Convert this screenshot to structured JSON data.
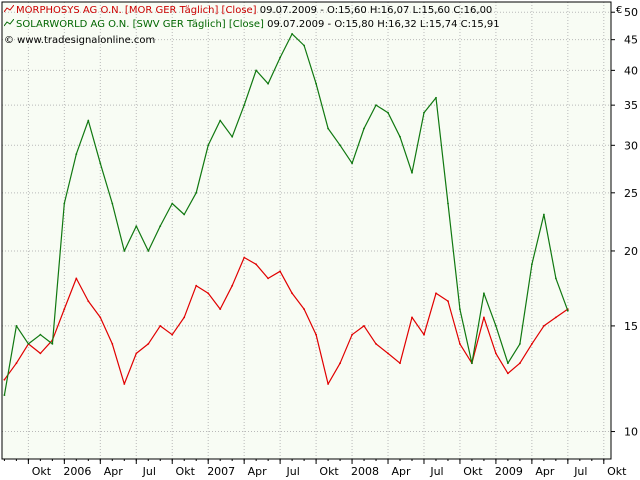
{
  "colors": {
    "series1": "#e10000",
    "series2": "#107810",
    "background": "#f8fcf4",
    "grid": "#b9b9b9",
    "axis": "#000000"
  },
  "legend": {
    "line1": {
      "icon": "line-chart-icon",
      "name": "MORPHOSYS AG O.N. [MOR GER  Täglich] [Close]",
      "quote": "09.07.2009 - O:15,60 H:16,07 L:15,60 C:16,00"
    },
    "line2": {
      "icon": "line-chart-icon",
      "name": "SOLARWORLD AG O.N. [SWV GER  Täglich] [Close]",
      "quote": "09.07.2009 - O:15,80 H:16,32 L:15,74 C:15,91"
    },
    "copyright": "© www.tradesignalonline.com"
  },
  "currency": "€",
  "chart_data": {
    "type": "line",
    "y_scale": "log",
    "ylim": [
      9,
      52
    ],
    "y_ticks": [
      "50",
      "45",
      "40",
      "35",
      "30",
      "25",
      "20",
      "15",
      "10"
    ],
    "x_tick_labels": [
      "Okt",
      "2006",
      "Apr",
      "Jul",
      "Okt",
      "2007",
      "Apr",
      "Jul",
      "Okt",
      "2008",
      "Apr",
      "Jul",
      "Okt",
      "2009",
      "Apr",
      "Jul",
      "Okt"
    ],
    "grid": true,
    "x": [
      "2005-08",
      "2005-09",
      "2005-10",
      "2005-11",
      "2005-12",
      "2006-01",
      "2006-02",
      "2006-03",
      "2006-04",
      "2006-05",
      "2006-06",
      "2006-07",
      "2006-08",
      "2006-09",
      "2006-10",
      "2006-11",
      "2006-12",
      "2007-01",
      "2007-02",
      "2007-03",
      "2007-04",
      "2007-05",
      "2007-06",
      "2007-07",
      "2007-08",
      "2007-09",
      "2007-10",
      "2007-11",
      "2007-12",
      "2008-01",
      "2008-02",
      "2008-03",
      "2008-04",
      "2008-05",
      "2008-06",
      "2008-07",
      "2008-08",
      "2008-09",
      "2008-10",
      "2008-11",
      "2008-12",
      "2009-01",
      "2009-02",
      "2009-03",
      "2009-04",
      "2009-05",
      "2009-06",
      "2009-07"
    ],
    "series": [
      {
        "name": "MORPHOSYS AG O.N.",
        "values": [
          12.2,
          13.0,
          14.0,
          13.5,
          14.2,
          16.0,
          18.0,
          16.5,
          15.5,
          14.0,
          12.0,
          13.5,
          14.0,
          15.0,
          14.5,
          15.5,
          17.5,
          17.0,
          16.0,
          17.5,
          19.5,
          19.0,
          18.0,
          18.5,
          17.0,
          16.0,
          14.5,
          12.0,
          13.0,
          14.5,
          15.0,
          14.0,
          13.5,
          13.0,
          15.5,
          14.5,
          17.0,
          16.5,
          14.0,
          13.0,
          15.5,
          13.5,
          12.5,
          13.0,
          14.0,
          15.0,
          15.5,
          16.0
        ]
      },
      {
        "name": "SOLARWORLD AG O.N.",
        "values": [
          11.5,
          15.0,
          14.0,
          14.5,
          14.0,
          24.0,
          29.0,
          33.0,
          28.0,
          24.0,
          20.0,
          22.0,
          20.0,
          22.0,
          24.0,
          23.0,
          25.0,
          30.0,
          33.0,
          31.0,
          35.0,
          40.0,
          38.0,
          42.0,
          46.0,
          44.0,
          38.0,
          32.0,
          30.0,
          28.0,
          32.0,
          35.0,
          34.0,
          31.0,
          27.0,
          34.0,
          36.0,
          24.0,
          16.0,
          13.0,
          17.0,
          15.0,
          13.0,
          14.0,
          19.0,
          23.0,
          18.0,
          15.9
        ]
      }
    ]
  }
}
